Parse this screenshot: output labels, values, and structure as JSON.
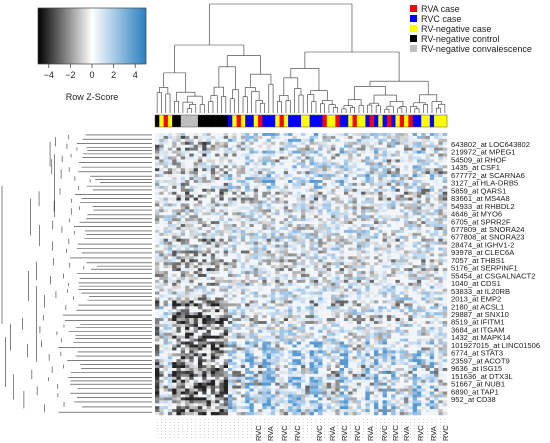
{
  "chart_data": {
    "type": "heatmap",
    "color_key": {
      "title": "Row Z-Score",
      "range": [
        -5,
        5
      ],
      "ticks": [
        -4,
        -2,
        0,
        2,
        4
      ],
      "low_color": "#000000",
      "mid_color": "#ffffff",
      "high_color": "#2a7fc0"
    },
    "legend": {
      "placement": "top-right",
      "entries": [
        {
          "label": "RVA case",
          "color": "#ff0000"
        },
        {
          "label": "RVC case",
          "color": "#0000ff"
        },
        {
          "label": "RV-negative case",
          "color": "#ffff00"
        },
        {
          "label": "RV-negative control",
          "color": "#000000"
        },
        {
          "label": "RV-negative convalescence",
          "color": "#bebebe"
        }
      ]
    },
    "column_groups": [
      "black",
      "yellow",
      "red",
      "yellow",
      "black",
      "black",
      "gray",
      "gray",
      "gray",
      "gray",
      "black",
      "black",
      "black",
      "black",
      "black",
      "black",
      "black",
      "blue",
      "yellow",
      "red",
      "yellow",
      "blue",
      "blue",
      "yellow",
      "red",
      "blue",
      "blue",
      "blue",
      "yellow",
      "red",
      "yellow",
      "blue",
      "blue",
      "blue",
      "yellow",
      "yellow",
      "blue",
      "blue",
      "blue",
      "red",
      "yellow",
      "yellow",
      "red",
      "blue",
      "blue",
      "yellow",
      "red",
      "yellow",
      "yellow",
      "blue",
      "red",
      "blue",
      "yellow",
      "blue",
      "red",
      "blue",
      "yellow",
      "red",
      "yellow",
      "red",
      "blue",
      "blue",
      "yellow",
      "yellow",
      "blue",
      "yellow",
      "yellow",
      "yellow"
    ],
    "row_labels": [
      "643802_at LOC643802",
      "219972_at MPEG1",
      "54509_at RHOF",
      "1435_at CSF1",
      "677772_at SCARNA6",
      "3127_at HLA-DRB5",
      "5859_at QARS1",
      "83661_at MS4A8",
      "54933_at RHBDL2",
      "4646_at MYO6",
      "6705_at SPRR2F",
      "677809_at SNORA24",
      "677808_at SNORA23",
      "28474_at IGHV1-2",
      "93978_at CLEC6A",
      "7057_at THBS1",
      "5176_at SERPINF1",
      "55454_at CSGALNACT2",
      "1040_at CDS1",
      "53833_at IL20RB",
      "2013_at EMP2",
      "2180_at ACSL1",
      "29887_at SNX10",
      "8519_at IFITM1",
      "3684_at ITGAM",
      "1432_at MAPK14",
      "101927015_at LINC01506",
      "6774_at STAT3",
      "23597_at ACOT9",
      "9636_at ISG15",
      "151636_at DTX3L",
      "51667_at NUB1",
      "6890_at TAP1",
      "952_at CD38"
    ],
    "column_labels": [
      "RVC",
      "RVA",
      "RVC",
      "RVC",
      "RVC",
      "RVA",
      "RVC",
      "RVC",
      "RVA",
      "RVC",
      "RVC",
      "RVA",
      "RVC",
      "RVA",
      "RVC"
    ],
    "row_dendrogram": true,
    "column_dendrogram": true
  }
}
